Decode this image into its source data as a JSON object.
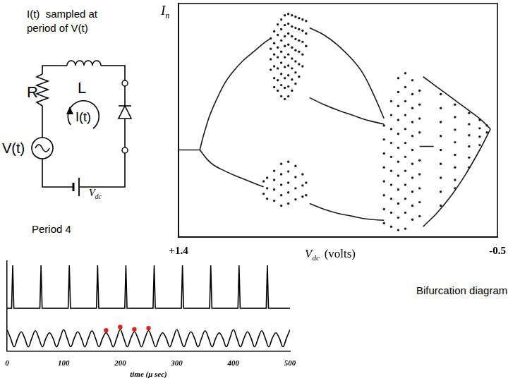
{
  "caption": [
    "I(t)  sampled at",
    "period of V(t)"
  ],
  "circuit": {
    "resistor": "R",
    "inductor": "L",
    "current": "I(t)",
    "source": "V(t)",
    "battery": {
      "symbol": "V",
      "sub": "dc"
    }
  },
  "annotations": {
    "time_series": "Period 4",
    "bifurcation": "Bifurcation diagram"
  },
  "chart_data": [
    {
      "type": "scatter",
      "y_label": {
        "symbol": "I",
        "sub": "n"
      },
      "x_label": {
        "symbol": "V",
        "sub": "dc",
        "after": "(volts)"
      },
      "xlim": [
        1.4,
        -0.5
      ],
      "xticks": [
        {
          "value": 1.4,
          "label": "+1.4"
        },
        -0.5
      ],
      "ylim": [
        0,
        335
      ],
      "tick_labels": "x",
      "grid": false,
      "series": [
        {
          "type": "line",
          "color": "#1a1a1a",
          "line_style": "solid",
          "x": [
            1.4,
            1.358,
            1.316,
            1.273
          ],
          "values": [
            125,
            125,
            125,
            125
          ]
        },
        {
          "type": "line",
          "color": "#1a1a1a",
          "line_style": "smooth",
          "x": [
            1.273,
            1.252,
            1.231,
            1.21,
            1.168,
            1.126,
            1.083,
            1.02,
            0.957,
            0.893,
            0.851
          ],
          "values": [
            125,
            145,
            162,
            177,
            200,
            220,
            235,
            252,
            265,
            278,
            285
          ]
        },
        {
          "type": "line",
          "color": "#1a1a1a",
          "line_style": "smooth",
          "x": [
            1.273,
            1.231,
            1.189,
            1.126,
            1.062,
            0.999,
            0.936,
            0.893
          ],
          "values": [
            125,
            112,
            103,
            95,
            88,
            82,
            76,
            72
          ]
        },
        {
          "type": "line",
          "color": "#1a1a1a",
          "line_style": "smooth",
          "x": [
            0.619,
            0.534,
            0.45,
            0.366,
            0.302,
            0.239,
            0.176
          ],
          "values": [
            300,
            290,
            275,
            255,
            235,
            205,
            170
          ]
        },
        {
          "type": "line",
          "color": "#1a1a1a",
          "line_style": "smooth",
          "x": [
            0.619,
            0.534,
            0.45,
            0.366,
            0.281,
            0.176
          ],
          "values": [
            200,
            190,
            182,
            175,
            168,
            162
          ]
        },
        {
          "type": "line",
          "color": "#1a1a1a",
          "line_style": "smooth",
          "x": [
            0.619,
            0.534,
            0.45,
            0.366,
            0.281,
            0.176
          ],
          "values": [
            48,
            40,
            34,
            30,
            26,
            24
          ]
        },
        {
          "type": "line",
          "color": "#1a1a1a",
          "line_style": "solid",
          "x": [
            -0.036,
            -0.078,
            -0.12
          ],
          "values": [
            130,
            130,
            130
          ]
        },
        {
          "type": "line",
          "color": "#1a1a1a",
          "line_style": "smooth",
          "x": [
            -0.057,
            -0.141,
            -0.226,
            -0.31,
            -0.394,
            -0.458
          ],
          "values": [
            230,
            215,
            200,
            185,
            170,
            155
          ]
        },
        {
          "type": "line",
          "color": "#1a1a1a",
          "line_style": "smooth",
          "x": [
            -0.057,
            -0.141,
            -0.226,
            -0.31,
            -0.394,
            -0.458
          ],
          "values": [
            15,
            35,
            60,
            90,
            125,
            155
          ]
        },
        {
          "type": "scatter",
          "color": "#1a1a1a",
          "marker": "dot",
          "x": [
            0.851,
            0.851,
            0.851,
            0.851,
            0.83,
            0.83,
            0.83,
            0.83,
            0.83,
            0.83,
            0.809,
            0.809,
            0.809,
            0.809,
            0.809,
            0.809,
            0.809,
            0.788,
            0.788,
            0.788,
            0.788,
            0.788,
            0.788,
            0.788,
            0.788,
            0.767,
            0.767,
            0.767,
            0.767,
            0.767,
            0.767,
            0.767,
            0.767,
            0.767,
            0.746,
            0.746,
            0.746,
            0.746,
            0.746,
            0.746,
            0.746,
            0.746,
            0.746,
            0.724,
            0.724,
            0.724,
            0.724,
            0.724,
            0.724,
            0.724,
            0.724,
            0.703,
            0.703,
            0.703,
            0.703,
            0.703,
            0.703,
            0.703,
            0.682,
            0.682,
            0.682,
            0.682,
            0.682,
            0.682,
            0.661,
            0.661,
            0.661,
            0.661,
            0.661,
            0.64,
            0.64,
            0.64
          ],
          "values": [
            285,
            270,
            255,
            240,
            295,
            278,
            262,
            245,
            228,
            215,
            305,
            290,
            272,
            258,
            242,
            225,
            210,
            312,
            298,
            282,
            266,
            250,
            234,
            218,
            202,
            318,
            304,
            288,
            274,
            258,
            244,
            228,
            214,
            198,
            320,
            306,
            292,
            276,
            262,
            246,
            232,
            216,
            202,
            318,
            302,
            288,
            272,
            256,
            242,
            226,
            210,
            316,
            300,
            284,
            268,
            252,
            236,
            220,
            314,
            298,
            282,
            266,
            248,
            230,
            312,
            296,
            280,
            262,
            245,
            310,
            292,
            274
          ]
        },
        {
          "type": "scatter",
          "color": "#1a1a1a",
          "marker": "dot",
          "x": [
            0.893,
            0.893,
            0.872,
            0.872,
            0.872,
            0.83,
            0.83,
            0.83,
            0.83,
            0.788,
            0.788,
            0.788,
            0.788,
            0.788,
            0.746,
            0.746,
            0.746,
            0.746,
            0.746,
            0.703,
            0.703,
            0.703,
            0.703,
            0.661,
            0.661,
            0.661,
            0.64,
            0.64
          ],
          "values": [
            80,
            62,
            85,
            70,
            55,
            95,
            82,
            68,
            52,
            105,
            90,
            75,
            60,
            45,
            108,
            94,
            78,
            64,
            48,
            102,
            86,
            70,
            54,
            90,
            74,
            58,
            78,
            60
          ]
        },
        {
          "type": "scatter",
          "color": "#1a1a1a",
          "marker": "dot",
          "x": [
            0.176,
            0.176,
            0.176,
            0.176,
            0.176,
            0.176,
            0.176,
            0.176,
            0.133,
            0.133,
            0.133,
            0.133,
            0.133,
            0.133,
            0.133,
            0.133,
            0.133,
            0.133,
            0.091,
            0.091,
            0.091,
            0.091,
            0.091,
            0.091,
            0.091,
            0.091,
            0.091,
            0.091,
            0.091,
            0.091,
            0.049,
            0.049,
            0.049,
            0.049,
            0.049,
            0.049,
            0.049,
            0.049,
            0.049,
            0.049,
            0.049,
            0.049,
            0.007,
            0.007,
            0.007,
            0.007,
            0.007,
            0.007,
            0.007,
            0.007,
            0.007,
            0.007,
            0.007,
            -0.036,
            -0.036,
            -0.036,
            -0.036,
            -0.036,
            -0.036,
            -0.036,
            -0.036,
            -0.036
          ],
          "values": [
            160,
            140,
            120,
            100,
            80,
            60,
            40,
            20,
            195,
            175,
            155,
            135,
            115,
            95,
            75,
            55,
            35,
            15,
            228,
            208,
            188,
            168,
            148,
            128,
            108,
            88,
            68,
            48,
            28,
            10,
            235,
            215,
            195,
            175,
            155,
            135,
            115,
            95,
            75,
            55,
            35,
            12,
            225,
            205,
            185,
            165,
            145,
            125,
            105,
            85,
            65,
            45,
            25,
            210,
            190,
            170,
            150,
            110,
            90,
            70,
            50,
            30
          ]
        },
        {
          "type": "scatter",
          "color": "#1a1a1a",
          "marker": "dot",
          "x": [
            -0.162,
            -0.162,
            -0.162,
            -0.162,
            -0.162,
            -0.162,
            -0.162,
            -0.162,
            -0.162,
            -0.247,
            -0.247,
            -0.247,
            -0.247,
            -0.247,
            -0.247,
            -0.247,
            -0.247,
            -0.331,
            -0.331,
            -0.331,
            -0.331,
            -0.331,
            -0.331,
            -0.394,
            -0.394,
            -0.394,
            -0.394,
            -0.437,
            -0.437
          ],
          "values": [
            205,
            185,
            165,
            145,
            125,
            105,
            85,
            65,
            45,
            190,
            172,
            154,
            136,
            118,
            100,
            82,
            70,
            178,
            162,
            146,
            130,
            114,
            100,
            168,
            156,
            144,
            132,
            160,
            150
          ]
        }
      ]
    },
    {
      "type": "line",
      "x_label": "time (μ sec)",
      "xlim": [
        0,
        500
      ],
      "xticks": [
        0,
        100,
        200,
        300,
        400,
        500
      ],
      "ylim": [
        -1,
        3.2
      ],
      "tick_labels": "x",
      "grid": false,
      "series": [
        {
          "type": "line",
          "color": "#000000",
          "line_style": "solid",
          "x": [
            0,
            8,
            10,
            12,
            58,
            60,
            62,
            108,
            110,
            112,
            158,
            160,
            162,
            208,
            210,
            212,
            258,
            260,
            262,
            308,
            310,
            312,
            358,
            360,
            362,
            408,
            410,
            412,
            458,
            460,
            462,
            500
          ],
          "values": [
            1,
            1,
            3,
            1,
            1,
            3,
            1,
            1,
            3,
            1,
            1,
            3,
            1,
            1,
            3,
            1,
            1,
            3,
            1,
            1,
            3,
            1,
            1,
            3,
            1,
            1,
            3,
            1,
            1,
            3,
            1,
            1
          ]
        },
        {
          "type": "line",
          "color": "#000000",
          "line_style": "smooth",
          "x": [
            0,
            6.25,
            12.5,
            18.75,
            25,
            31.25,
            37.5,
            43.75,
            50,
            56.25,
            62.5,
            68.75,
            75,
            81.25,
            87.5,
            93.75,
            100,
            106.25,
            112.5,
            118.75,
            125,
            131.25,
            137.5,
            143.75,
            150,
            156.25,
            162.5,
            168.75,
            175,
            181.25,
            187.5,
            193.75,
            200,
            206.25,
            212.5,
            218.75,
            225,
            231.25,
            237.5,
            243.75,
            250,
            256.25,
            262.5,
            268.75,
            275,
            281.25,
            287.5,
            293.75,
            300,
            306.25,
            312.5,
            318.75,
            325,
            331.25,
            337.5,
            343.75,
            350,
            356.25,
            362.5,
            368.75,
            375,
            381.25,
            387.5,
            393.75,
            400,
            406.25,
            412.5,
            418.75,
            425,
            431.25,
            437.5,
            443.75,
            450,
            456.25,
            462.5,
            468.75,
            475,
            481.25,
            487.5,
            493.75,
            500
          ],
          "values": [
            0,
            -0.4,
            -0.8,
            -0.4,
            -0.1,
            -0.4,
            -0.8,
            -0.4,
            -0.05,
            -0.4,
            -0.8,
            -0.4,
            -0.15,
            -0.4,
            -0.8,
            -0.4,
            0,
            -0.4,
            -0.8,
            -0.4,
            -0.1,
            -0.4,
            -0.8,
            -0.4,
            -0.05,
            -0.4,
            -0.8,
            -0.4,
            -0.15,
            -0.4,
            -0.8,
            -0.4,
            0,
            -0.4,
            -0.8,
            -0.4,
            -0.1,
            -0.4,
            -0.8,
            -0.4,
            -0.05,
            -0.4,
            -0.8,
            -0.4,
            -0.15,
            -0.4,
            -0.8,
            -0.4,
            0,
            -0.4,
            -0.8,
            -0.4,
            -0.1,
            -0.4,
            -0.8,
            -0.4,
            -0.05,
            -0.4,
            -0.8,
            -0.4,
            -0.15,
            -0.4,
            -0.8,
            -0.4,
            0,
            -0.4,
            -0.8,
            -0.4,
            -0.1,
            -0.4,
            -0.8,
            -0.4,
            -0.05,
            -0.4,
            -0.8,
            -0.4,
            -0.15,
            -0.4,
            -0.8,
            -0.4,
            0
          ]
        },
        {
          "type": "scatter",
          "color": "#e0201c",
          "marker": "circle",
          "x": [
            175,
            200,
            225,
            250
          ],
          "values": [
            -0.03,
            0.12,
            0.02,
            0.07
          ]
        }
      ]
    }
  ]
}
